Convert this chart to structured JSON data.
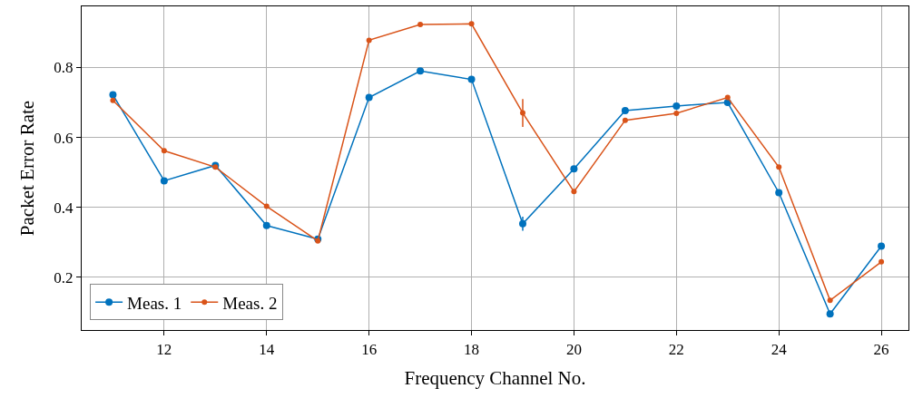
{
  "chart_data": {
    "type": "line",
    "xlabel": "Frequency Channel No.",
    "ylabel": "Packet Error Rate",
    "x": [
      11,
      12,
      13,
      14,
      15,
      16,
      17,
      18,
      19,
      20,
      21,
      22,
      23,
      24,
      25,
      26
    ],
    "series": [
      {
        "name": "Meas. 1",
        "color": "#0072bd",
        "values": [
          0.722,
          0.476,
          0.52,
          0.348,
          0.309,
          0.714,
          0.79,
          0.766,
          0.353,
          0.51,
          0.677,
          0.69,
          0.7,
          0.442,
          0.095,
          0.289
        ],
        "errors": [
          null,
          null,
          null,
          null,
          null,
          null,
          null,
          null,
          0.02,
          null,
          null,
          null,
          null,
          null,
          null,
          null
        ]
      },
      {
        "name": "Meas. 2",
        "color": "#d95319",
        "values": [
          0.706,
          0.562,
          0.515,
          0.403,
          0.304,
          0.878,
          0.923,
          0.925,
          0.67,
          0.445,
          0.649,
          0.669,
          0.714,
          0.515,
          0.134,
          0.244
        ],
        "errors": [
          null,
          null,
          null,
          null,
          null,
          null,
          null,
          null,
          0.04,
          null,
          null,
          null,
          null,
          null,
          null,
          null
        ]
      }
    ],
    "xlim": [
      10.39,
      26.53
    ],
    "xticks": [
      12,
      14,
      16,
      18,
      20,
      22,
      24,
      26
    ],
    "ylim": [
      0.049,
      0.975
    ],
    "yticks": [
      0.2,
      0.4,
      0.6,
      0.8
    ],
    "grid": true,
    "legend": "bottom left",
    "marker": "circle",
    "line_style": "solid"
  }
}
